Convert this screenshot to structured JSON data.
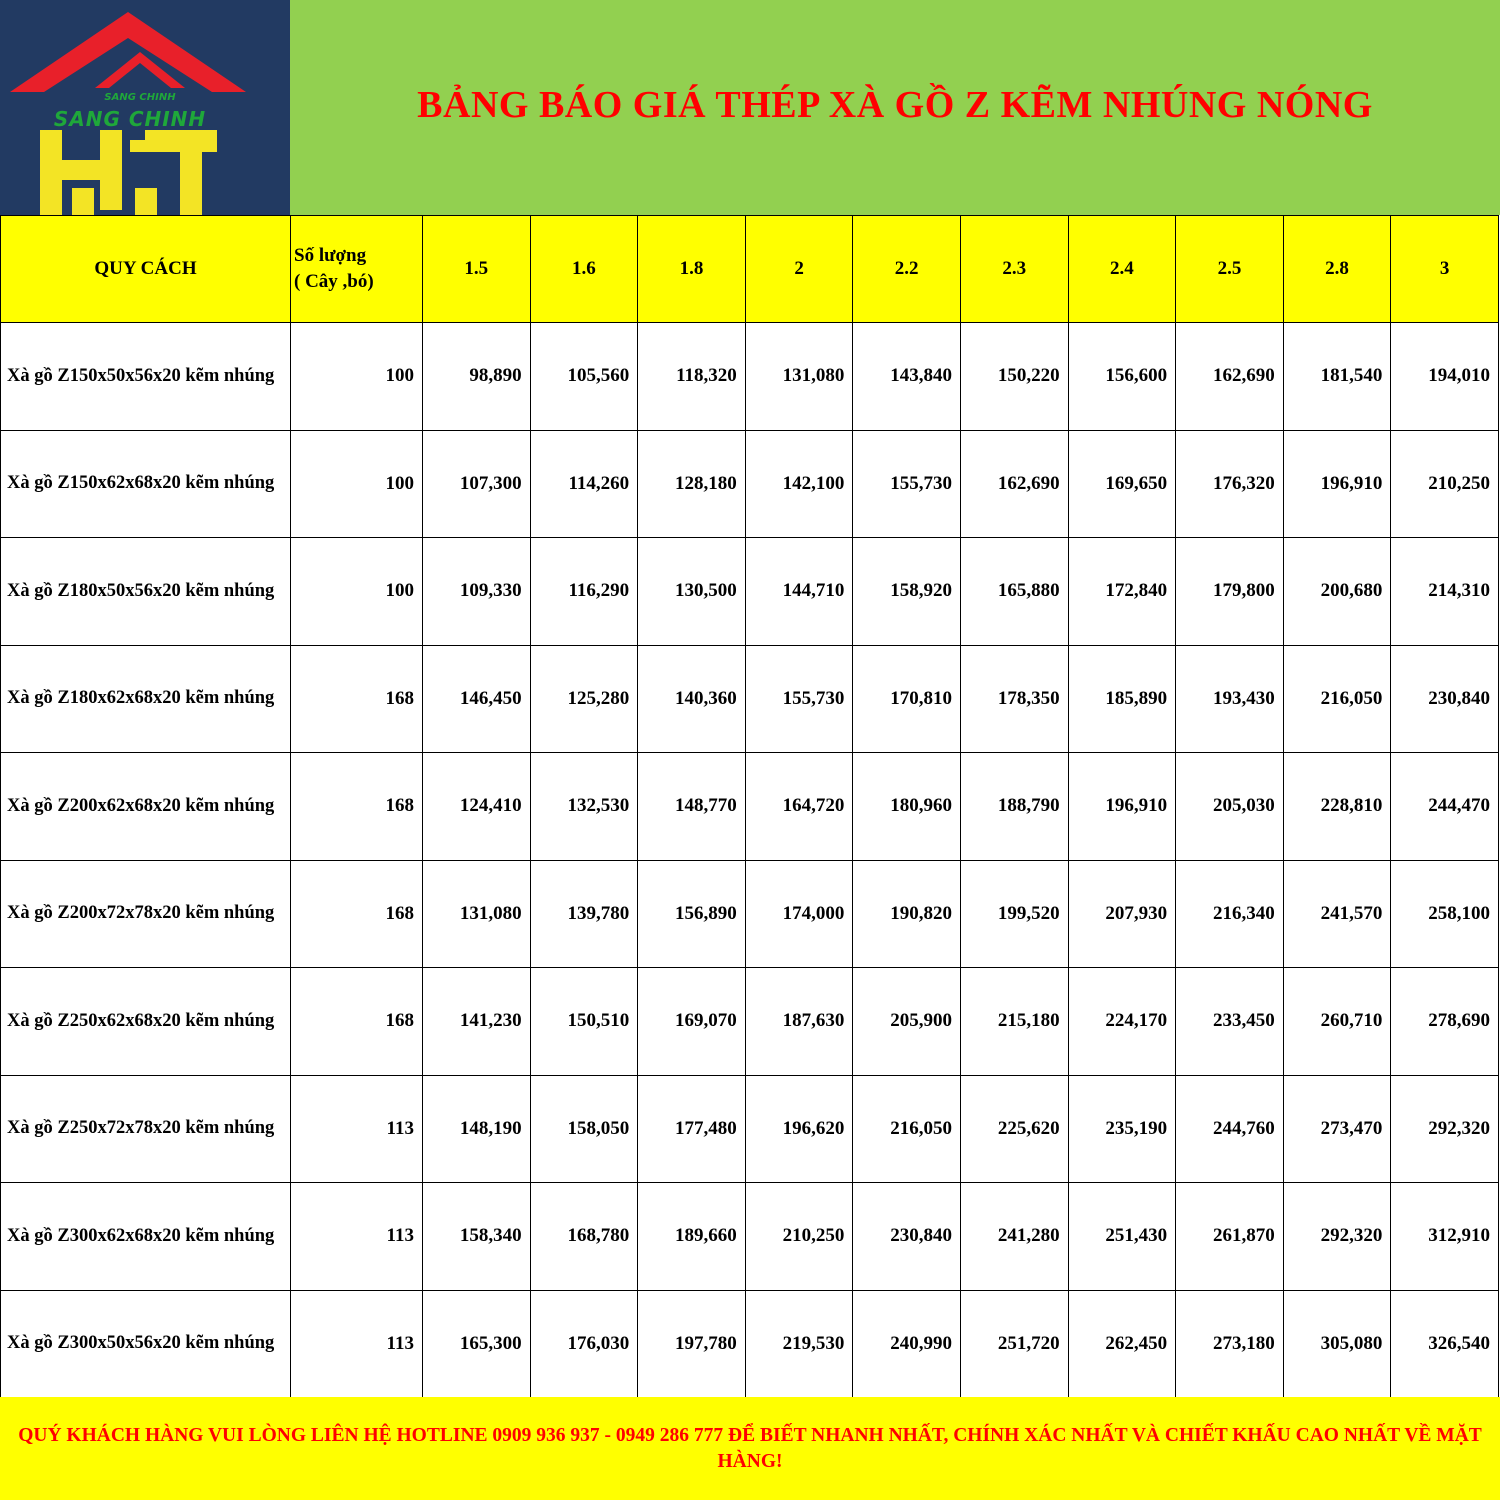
{
  "logo": {
    "text": "SANG CHINH HT",
    "colors": {
      "background": "#223a62",
      "roof": "#e8202a",
      "text": "#1fa83a",
      "letters": "#ffee22"
    }
  },
  "title": "BẢNG BÁO GIÁ THÉP XÀ GỒ Z KẼM NHÚNG NÓNG",
  "colors": {
    "title_band": "#92d050",
    "title_text": "#ff0000",
    "header_bg": "#ffff00",
    "footer_bg": "#ffff00",
    "footer_text": "#ff0000"
  },
  "table": {
    "headers": {
      "spec": "QUY CÁCH",
      "qty_line1": "Số lượng",
      "qty_line2": "( Cây ,bó)",
      "thickness": [
        "1.5",
        "1.6",
        "1.8",
        "2",
        "2.2",
        "2.3",
        "2.4",
        "2.5",
        "2.8",
        "3"
      ]
    },
    "rows": [
      {
        "name": "Xà gồ Z150x50x56x20 kẽm nhúng",
        "qty": "100",
        "prices": [
          "98,890",
          "105,560",
          "118,320",
          "131,080",
          "143,840",
          "150,220",
          "156,600",
          "162,690",
          "181,540",
          "194,010"
        ]
      },
      {
        "name": "Xà gồ Z150x62x68x20 kẽm nhúng",
        "qty": "100",
        "prices": [
          "107,300",
          "114,260",
          "128,180",
          "142,100",
          "155,730",
          "162,690",
          "169,650",
          "176,320",
          "196,910",
          "210,250"
        ]
      },
      {
        "name": "Xà gồ Z180x50x56x20 kẽm nhúng",
        "qty": "100",
        "prices": [
          "109,330",
          "116,290",
          "130,500",
          "144,710",
          "158,920",
          "165,880",
          "172,840",
          "179,800",
          "200,680",
          "214,310"
        ]
      },
      {
        "name": "Xà gồ Z180x62x68x20 kẽm nhúng",
        "qty": "168",
        "prices": [
          "146,450",
          "125,280",
          "140,360",
          "155,730",
          "170,810",
          "178,350",
          "185,890",
          "193,430",
          "216,050",
          "230,840"
        ]
      },
      {
        "name": "Xà gồ Z200x62x68x20 kẽm nhúng",
        "qty": "168",
        "prices": [
          "124,410",
          "132,530",
          "148,770",
          "164,720",
          "180,960",
          "188,790",
          "196,910",
          "205,030",
          "228,810",
          "244,470"
        ]
      },
      {
        "name": "Xà gồ Z200x72x78x20 kẽm nhúng",
        "qty": "168",
        "prices": [
          "131,080",
          "139,780",
          "156,890",
          "174,000",
          "190,820",
          "199,520",
          "207,930",
          "216,340",
          "241,570",
          "258,100"
        ]
      },
      {
        "name": "Xà gồ Z250x62x68x20 kẽm nhúng",
        "qty": "168",
        "prices": [
          "141,230",
          "150,510",
          "169,070",
          "187,630",
          "205,900",
          "215,180",
          "224,170",
          "233,450",
          "260,710",
          "278,690"
        ]
      },
      {
        "name": "Xà gồ Z250x72x78x20 kẽm nhúng",
        "qty": "113",
        "prices": [
          "148,190",
          "158,050",
          "177,480",
          "196,620",
          "216,050",
          "225,620",
          "235,190",
          "244,760",
          "273,470",
          "292,320"
        ]
      },
      {
        "name": "Xà gồ Z300x62x68x20 kẽm nhúng",
        "qty": "113",
        "prices": [
          "158,340",
          "168,780",
          "189,660",
          "210,250",
          "230,840",
          "241,280",
          "251,430",
          "261,870",
          "292,320",
          "312,910"
        ]
      },
      {
        "name": "Xà gồ Z300x50x56x20 kẽm nhúng",
        "qty": "113",
        "prices": [
          "165,300",
          "176,030",
          "197,780",
          "219,530",
          "240,990",
          "251,720",
          "262,450",
          "273,180",
          "305,080",
          "326,540"
        ]
      }
    ]
  },
  "footer": "QUÝ KHÁCH HÀNG VUI LÒNG LIÊN HỆ HOTLINE 0909 936 937 - 0949 286 777 ĐỂ BIẾT NHANH NHẤT, CHÍNH XÁC NHẤT VÀ CHIẾT KHẤU CAO NHẤT VỀ MẶT HÀNG!"
}
